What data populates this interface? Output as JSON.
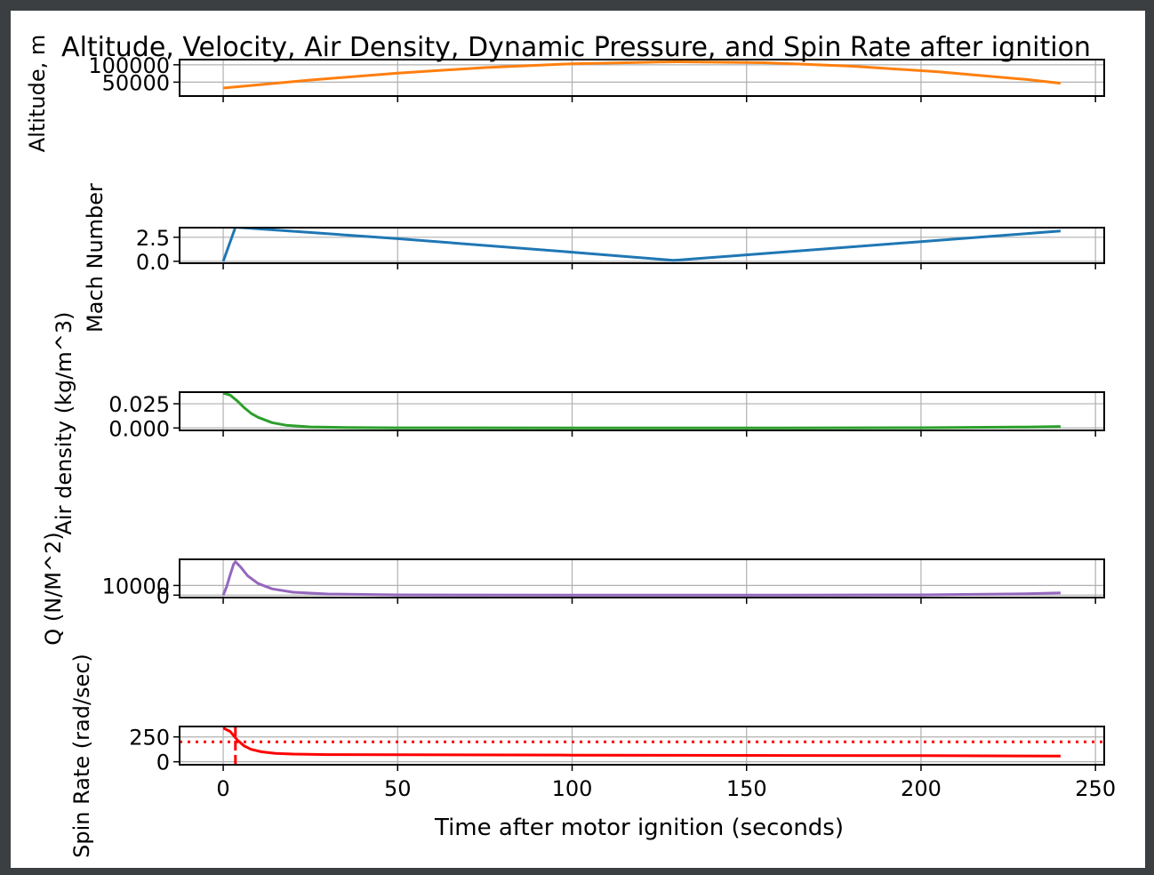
{
  "figure": {
    "title": "Altitude, Velocity, Air Density, Dynamic Pressure, and Spin Rate after ignition",
    "xlabel": "Time after motor ignition (seconds)"
  },
  "chart_data": [
    {
      "type": "line",
      "ylabel": "Altitude, m",
      "color": "#ff7f0e",
      "xlim": [
        -12.5,
        252.5
      ],
      "ylim": [
        10000,
        115000
      ],
      "yticks": [
        {
          "v": 50000,
          "label": "50000"
        },
        {
          "v": 100000,
          "label": "100000"
        }
      ],
      "series": [
        {
          "x": [
            0,
            25,
            50,
            75,
            100,
            125,
            130,
            155,
            180,
            205,
            230,
            240
          ],
          "y": [
            33000,
            56000,
            76000,
            92000,
            103000,
            108000,
            108500,
            106000,
            96000,
            80000,
            58000,
            47000
          ]
        }
      ]
    },
    {
      "type": "line",
      "ylabel": "Mach Number",
      "color": "#1f77b4",
      "xlim": [
        -12.5,
        252.5
      ],
      "ylim": [
        -0.2,
        3.5
      ],
      "yticks": [
        {
          "v": 0.0,
          "label": "0.0"
        },
        {
          "v": 2.5,
          "label": "2.5"
        }
      ],
      "series": [
        {
          "x": [
            0,
            3.5,
            50,
            100,
            129,
            160,
            200,
            240
          ],
          "y": [
            0.0,
            3.55,
            2.35,
            0.95,
            0.1,
            0.95,
            2.05,
            3.15
          ]
        }
      ]
    },
    {
      "type": "line",
      "ylabel": "Air density (kg/m^3)",
      "color": "#2ca02c",
      "xlim": [
        -12.5,
        252.5
      ],
      "ylim": [
        -0.0025,
        0.037
      ],
      "yticks": [
        {
          "v": 0.0,
          "label": "0.000"
        },
        {
          "v": 0.025,
          "label": "0.025"
        }
      ],
      "series": [
        {
          "x": [
            0,
            2,
            4,
            6,
            8,
            10,
            14,
            18,
            25,
            35,
            50,
            100,
            150,
            200,
            230,
            240
          ],
          "y": [
            0.036,
            0.034,
            0.028,
            0.021,
            0.015,
            0.011,
            0.0055,
            0.0028,
            0.0011,
            0.0004,
            0.00015,
            0.0,
            0.0,
            0.00025,
            0.001,
            0.0015
          ]
        }
      ]
    },
    {
      "type": "line",
      "ylabel": "Q (N/M^2)",
      "color": "#9467bd",
      "xlim": [
        -12.5,
        252.5
      ],
      "ylim": [
        -2500,
        37000
      ],
      "yticks": [
        {
          "v": 0,
          "label": "0"
        },
        {
          "v": 10000,
          "label": "10000"
        }
      ],
      "series": [
        {
          "x": [
            0,
            1,
            2,
            3,
            3.5,
            5,
            7,
            10,
            14,
            20,
            30,
            50,
            100,
            150,
            200,
            230,
            240
          ],
          "y": [
            0,
            9000,
            21000,
            32000,
            34500,
            29000,
            20000,
            12000,
            6500,
            3000,
            1200,
            300,
            0,
            0,
            300,
            1400,
            2400
          ]
        }
      ]
    },
    {
      "type": "line",
      "ylabel": "Spin Rate (rad/sec)",
      "color": "#ff0000",
      "xlim": [
        -12.5,
        252.5
      ],
      "ylim": [
        -30,
        355
      ],
      "yticks": [
        {
          "v": 0,
          "label": "0"
        },
        {
          "v": 250,
          "label": "250"
        }
      ],
      "xticks": [
        {
          "v": 0,
          "label": "0"
        },
        {
          "v": 50,
          "label": "50"
        },
        {
          "v": 100,
          "label": "100"
        },
        {
          "v": 150,
          "label": "150"
        },
        {
          "v": 200,
          "label": "200"
        },
        {
          "v": 250,
          "label": "250"
        }
      ],
      "series": [
        {
          "x": [
            0,
            2,
            4,
            6,
            8,
            11,
            15,
            20,
            30,
            50,
            100,
            150,
            200,
            240
          ],
          "y": [
            340,
            305,
            220,
            160,
            125,
            100,
            85,
            77,
            72,
            70,
            67,
            64,
            61,
            58
          ]
        }
      ],
      "hline": {
        "y": 200,
        "style": "dotted"
      },
      "vline": {
        "x": 3.5,
        "style": "dashed"
      }
    }
  ]
}
